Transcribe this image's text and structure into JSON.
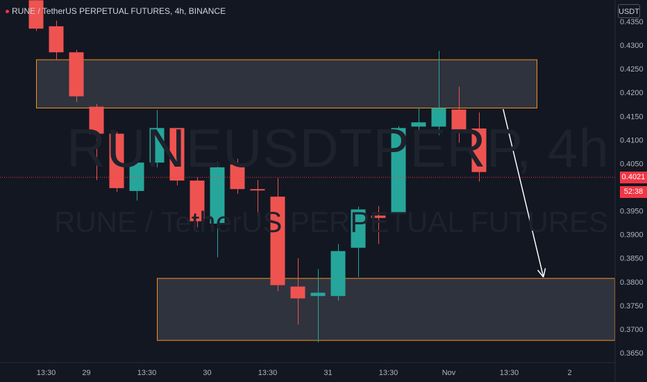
{
  "header": {
    "title": "RUNE / TetherUS PERPETUAL FUTURES, 4h, BINANCE"
  },
  "watermark": {
    "symbol": "RUNEUSDTPERP, 4h",
    "description": "RUNE / TetherUS PERPETUAL FUTURES"
  },
  "price_axis": {
    "currency": "USDT",
    "last_price": "0.4021",
    "countdown": "52:38"
  },
  "colors": {
    "background": "#131722",
    "up": "#26a69a",
    "down": "#ef5350",
    "zone_border": "#f7931a",
    "zone_fill": "#434651",
    "arrow": "#ffffff",
    "price_line": "#f23645"
  },
  "chart_data": {
    "type": "candlestick",
    "timeframe": "4h",
    "y_ticks": [
      0.435,
      0.43,
      0.425,
      0.42,
      0.415,
      0.41,
      0.405,
      0.395,
      0.39,
      0.385,
      0.38,
      0.375,
      0.37,
      0.365
    ],
    "ylim": [
      0.3635,
      0.4365
    ],
    "x_ticks": [
      {
        "label": "13:30",
        "index": 0.5
      },
      {
        "label": "29",
        "index": 2.5
      },
      {
        "label": "13:30",
        "index": 5.5
      },
      {
        "label": "30",
        "index": 8.5
      },
      {
        "label": "13:30",
        "index": 11.5
      },
      {
        "label": "31",
        "index": 14.5
      },
      {
        "label": "13:30",
        "index": 17.5
      },
      {
        "label": "Nov",
        "index": 20.5
      },
      {
        "label": "13:30",
        "index": 23.5
      },
      {
        "label": "2",
        "index": 26.5
      }
    ],
    "candles": [
      {
        "o": 0.4395,
        "h": 0.44,
        "l": 0.433,
        "c": 0.4335
      },
      {
        "o": 0.434,
        "h": 0.4352,
        "l": 0.4268,
        "c": 0.4285
      },
      {
        "o": 0.4285,
        "h": 0.429,
        "l": 0.418,
        "c": 0.4192
      },
      {
        "o": 0.417,
        "h": 0.4176,
        "l": 0.4015,
        "c": 0.4113
      },
      {
        "o": 0.4113,
        "h": 0.4117,
        "l": 0.399,
        "c": 0.3998
      },
      {
        "o": 0.3992,
        "h": 0.4072,
        "l": 0.3972,
        "c": 0.4052
      },
      {
        "o": 0.4052,
        "h": 0.4163,
        "l": 0.4042,
        "c": 0.4125
      },
      {
        "o": 0.4125,
        "h": 0.4125,
        "l": 0.4004,
        "c": 0.4014
      },
      {
        "o": 0.4014,
        "h": 0.4021,
        "l": 0.3915,
        "c": 0.3928
      },
      {
        "o": 0.3923,
        "h": 0.4053,
        "l": 0.3852,
        "c": 0.4042
      },
      {
        "o": 0.4048,
        "h": 0.406,
        "l": 0.3986,
        "c": 0.3996
      },
      {
        "o": 0.3996,
        "h": 0.4015,
        "l": 0.394,
        "c": 0.3994
      },
      {
        "o": 0.398,
        "h": 0.4019,
        "l": 0.378,
        "c": 0.3793
      },
      {
        "o": 0.379,
        "h": 0.385,
        "l": 0.371,
        "c": 0.3765
      },
      {
        "o": 0.377,
        "h": 0.3827,
        "l": 0.3672,
        "c": 0.3777
      },
      {
        "o": 0.377,
        "h": 0.388,
        "l": 0.376,
        "c": 0.3865
      },
      {
        "o": 0.3872,
        "h": 0.3959,
        "l": 0.381,
        "c": 0.3953
      },
      {
        "o": 0.394,
        "h": 0.396,
        "l": 0.388,
        "c": 0.3935
      },
      {
        "o": 0.3945,
        "h": 0.4129,
        "l": 0.3925,
        "c": 0.4125
      },
      {
        "o": 0.4128,
        "h": 0.4168,
        "l": 0.4056,
        "c": 0.4137
      },
      {
        "o": 0.4128,
        "h": 0.4288,
        "l": 0.411,
        "c": 0.4167
      },
      {
        "o": 0.4164,
        "h": 0.4212,
        "l": 0.4094,
        "c": 0.4114
      },
      {
        "o": 0.4124,
        "h": 0.4158,
        "l": 0.4012,
        "c": 0.4032
      }
    ],
    "zones": [
      {
        "top": 0.427,
        "bottom": 0.4168
      },
      {
        "top": 0.3808,
        "bottom": 0.3677
      }
    ],
    "arrow": {
      "from_index": 23.2,
      "from_price": 0.4165,
      "to_index": 25.2,
      "to_price": 0.381
    },
    "last_price_line": 0.4021
  }
}
